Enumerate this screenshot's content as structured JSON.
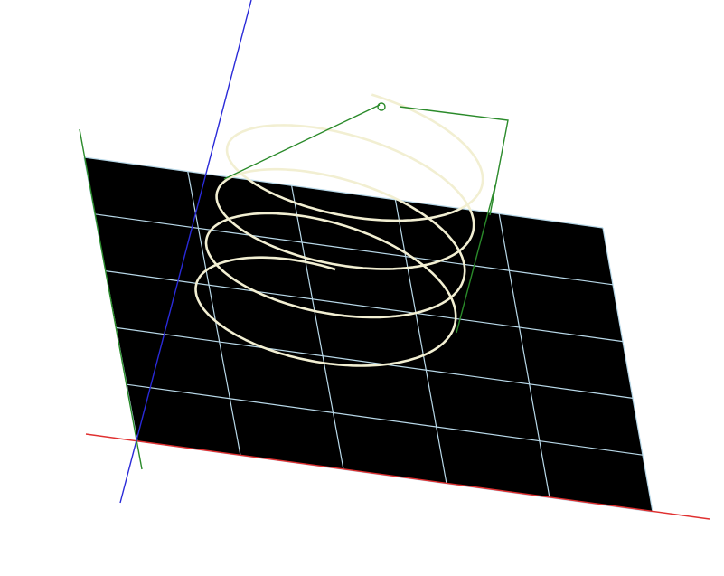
{
  "scene": {
    "background_color": "#ffffff",
    "grid_plane": {
      "fill_color": "#000000",
      "grid_line_color": "#b8d8e8",
      "rows": 5,
      "columns": 5
    },
    "axes": {
      "x_axis_color": "#e03030",
      "y_axis_color": "#2a8a2a",
      "z_axis_color": "#2a2ad8"
    },
    "helix": {
      "color": "#f2efd2",
      "turns": 4
    },
    "local_frame": {
      "color": "#2a8a2a"
    }
  }
}
